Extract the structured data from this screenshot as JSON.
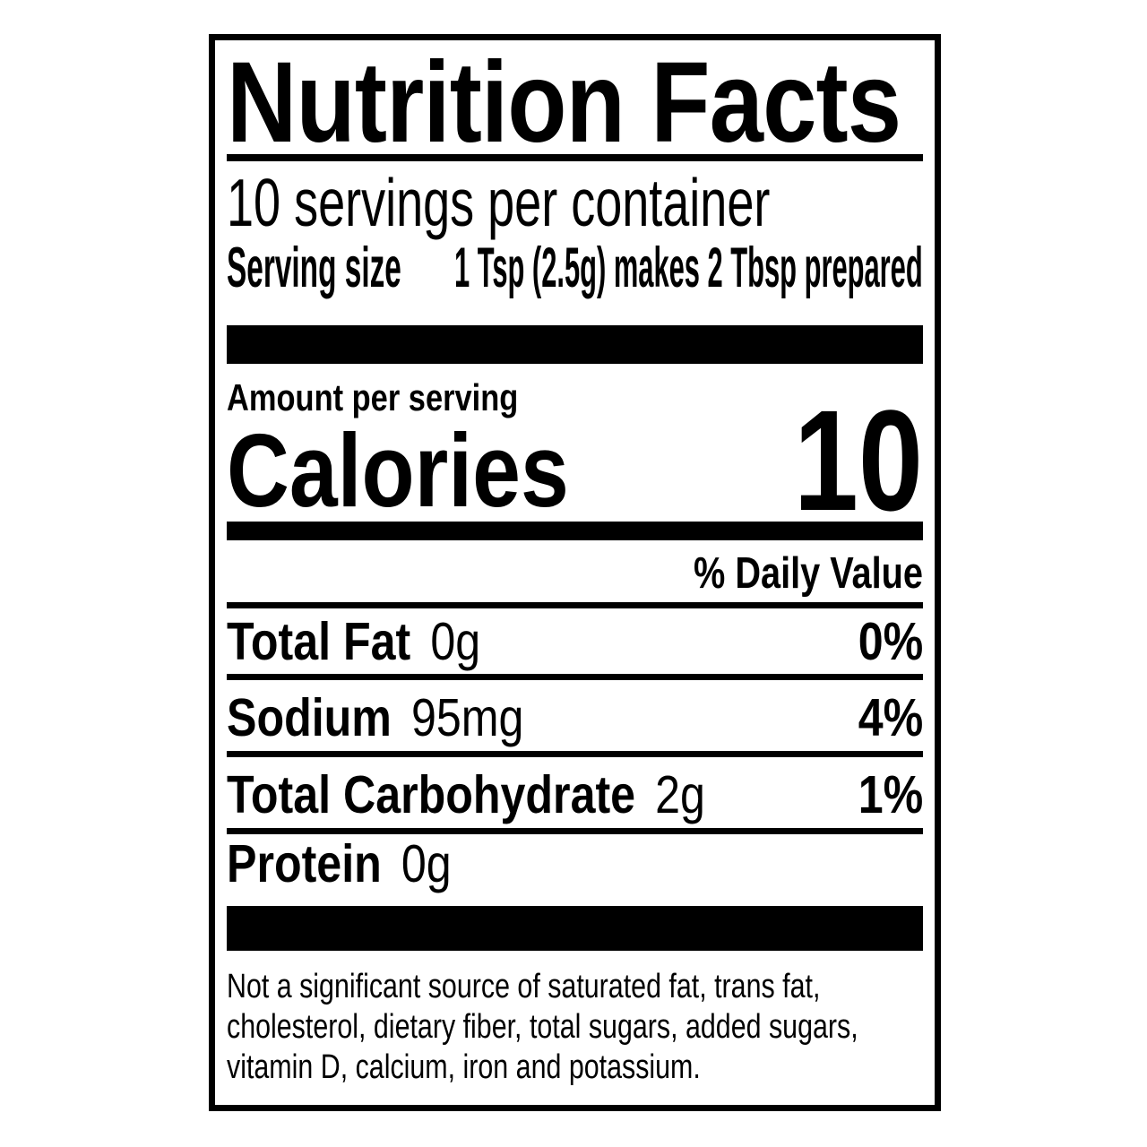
{
  "colors": {
    "ink": "#000000",
    "paper": "#ffffff"
  },
  "title": "Nutrition Facts",
  "servings_per_container": "10 servings per container",
  "serving_size": {
    "label": "Serving size",
    "value": "1 Tsp (2.5g) makes 2 Tbsp prepared"
  },
  "amount_per_serving": "Amount per serving",
  "calories": {
    "label": "Calories",
    "value": "10"
  },
  "daily_value_header": "% Daily Value",
  "nutrients": [
    {
      "name": "Total Fat",
      "amount": "0g",
      "dv": "0%"
    },
    {
      "name": "Sodium",
      "amount": "95mg",
      "dv": "4%"
    },
    {
      "name": "Total Carbohydrate",
      "amount": "2g",
      "dv": "1%"
    },
    {
      "name": "Protein",
      "amount": "0g",
      "dv": ""
    }
  ],
  "footnote_lines": [
    "Not a significant source of saturated fat, trans fat,",
    "cholesterol, dietary fiber, total sugars, added sugars,",
    "vitamin D, calcium, iron and potassium."
  ]
}
